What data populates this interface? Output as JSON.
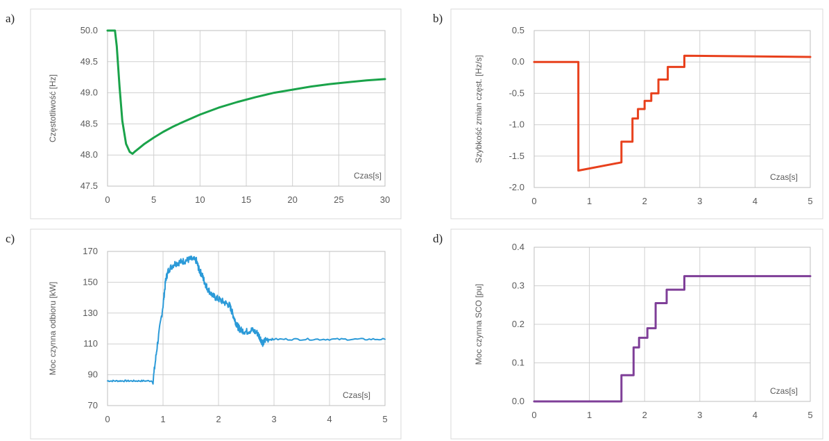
{
  "chart_data": [
    {
      "letter": "a)",
      "type": "line",
      "xlabel": "Czas[s]",
      "ylabel": "Częstotliwość [Hz]",
      "xlim": [
        0,
        30
      ],
      "ylim": [
        47.5,
        50.0
      ],
      "xticks": [
        "0",
        "5",
        "10",
        "15",
        "20",
        "25",
        "30"
      ],
      "yticks": [
        "47.5",
        "48.0",
        "48.5",
        "49.0",
        "49.5",
        "50.0"
      ],
      "grid": true,
      "color": "#1aa34a",
      "series": [
        {
          "x": [
            0,
            0.5,
            0.8,
            1.0,
            1.3,
            1.6,
            2.0,
            2.4,
            2.7,
            3.0,
            3.5,
            4,
            5,
            6,
            7,
            8,
            10,
            12,
            14,
            16,
            18,
            20,
            22,
            24,
            26,
            28,
            30
          ],
          "y": [
            50.0,
            50.0,
            50.0,
            49.75,
            49.1,
            48.55,
            48.18,
            48.05,
            48.02,
            48.06,
            48.12,
            48.18,
            48.28,
            48.37,
            48.45,
            48.52,
            48.65,
            48.76,
            48.85,
            48.93,
            49.0,
            49.05,
            49.1,
            49.14,
            49.17,
            49.2,
            49.22
          ]
        }
      ]
    },
    {
      "letter": "b)",
      "type": "line",
      "xlabel": "Czas[s]",
      "ylabel": "Szybkość zmian częst.  [Hz/s]",
      "xlim": [
        0,
        5
      ],
      "ylim": [
        -2.0,
        0.5
      ],
      "xticks": [
        "0",
        "1",
        "2",
        "3",
        "4",
        "5"
      ],
      "yticks": [
        "-2.0",
        "-1.5",
        "-1.0",
        "-0.5",
        "0.0",
        "0.5"
      ],
      "grid": true,
      "color": "#e8401c",
      "series": [
        {
          "x": [
            0,
            0.8,
            0.8,
            1.58,
            1.58,
            1.68,
            1.68,
            1.78,
            1.78,
            1.88,
            1.88,
            2.0,
            2.0,
            2.12,
            2.12,
            2.25,
            2.25,
            2.42,
            2.42,
            2.72,
            2.72,
            5
          ],
          "y": [
            0,
            0,
            -1.73,
            -1.6,
            -1.27,
            -1.27,
            -1.27,
            -1.27,
            -0.9,
            -0.9,
            -0.75,
            -0.75,
            -0.62,
            -0.62,
            -0.5,
            -0.5,
            -0.28,
            -0.28,
            -0.08,
            -0.08,
            0.1,
            0.08
          ]
        }
      ]
    },
    {
      "letter": "c)",
      "type": "line",
      "xlabel": "Czas[s]",
      "ylabel": "Moc czynna odbioru [kW]",
      "xlim": [
        0,
        5
      ],
      "ylim": [
        70,
        170
      ],
      "xticks": [
        "0",
        "1",
        "2",
        "3",
        "4",
        "5"
      ],
      "yticks": [
        "70",
        "90",
        "110",
        "130",
        "150",
        "170"
      ],
      "grid": true,
      "color": "#2b9ad8",
      "series": [
        {
          "x": [
            0,
            0.2,
            0.4,
            0.6,
            0.82,
            0.9,
            1.0,
            1.05,
            1.1,
            1.2,
            1.3,
            1.4,
            1.5,
            1.6,
            1.65,
            1.7,
            1.75,
            1.8,
            1.9,
            2.0,
            2.1,
            2.2,
            2.25,
            2.3,
            2.35,
            2.4,
            2.5,
            2.6,
            2.7,
            2.75,
            2.8,
            2.85,
            3.0,
            3.5,
            4.0,
            4.5,
            5.0
          ],
          "y": [
            86,
            86,
            86,
            86,
            86,
            110,
            135,
            152,
            158,
            162,
            163,
            164,
            165,
            164,
            158,
            155,
            150,
            146,
            141,
            139,
            137,
            135,
            130,
            125,
            121,
            119,
            118,
            119,
            117,
            114,
            110,
            113,
            113,
            113,
            113,
            113,
            113
          ]
        }
      ]
    },
    {
      "letter": "d)",
      "type": "line",
      "xlabel": "Czas[s]",
      "ylabel": "Moc czynna SCO [pu]",
      "xlim": [
        0,
        5
      ],
      "ylim": [
        0.0,
        0.4
      ],
      "xticks": [
        "0",
        "1",
        "2",
        "3",
        "4",
        "5"
      ],
      "yticks": [
        "0.0",
        "0.1",
        "0.2",
        "0.3",
        "0.4"
      ],
      "grid": true,
      "color": "#7f3f98",
      "series": [
        {
          "x": [
            0,
            1.58,
            1.58,
            1.75,
            1.75,
            1.8,
            1.8,
            1.9,
            1.9,
            2.05,
            2.05,
            2.2,
            2.2,
            2.4,
            2.4,
            2.72,
            2.72,
            5
          ],
          "y": [
            0,
            0,
            0.068,
            0.068,
            0.068,
            0.068,
            0.14,
            0.14,
            0.165,
            0.165,
            0.19,
            0.19,
            0.255,
            0.255,
            0.29,
            0.29,
            0.325,
            0.325
          ]
        }
      ]
    }
  ]
}
